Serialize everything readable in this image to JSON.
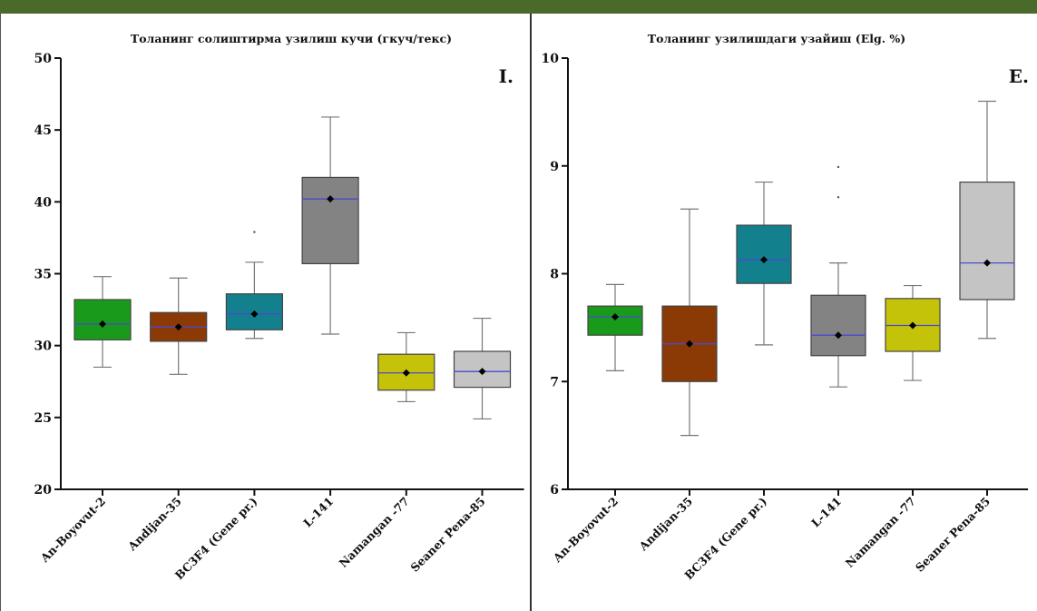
{
  "chart_data": [
    {
      "type": "box",
      "title": "Толанинг солиштирма узилиш кучи (гкуч/текс)",
      "panel_label": "I.",
      "categories": [
        "An-Boyovut-2",
        "Andijan-35",
        "BC3F4 (Gene pr.)",
        "L-141",
        "Namangan -77",
        "Seaner Pena-85"
      ],
      "colors": [
        "#1a9a1a",
        "#8b3a05",
        "#12808d",
        "#838383",
        "#c5c20a",
        "#c4c4c4"
      ],
      "ylim": [
        20,
        50
      ],
      "yticks": [
        20,
        25,
        30,
        35,
        40,
        45,
        50
      ],
      "boxes": [
        {
          "name": "An-Boyovut-2",
          "min": 28.5,
          "q1": 30.4,
          "median": 31.5,
          "q3": 33.2,
          "max": 34.8,
          "mean": 31.5
        },
        {
          "name": "Andijan-35",
          "min": 28.0,
          "q1": 30.3,
          "median": 31.3,
          "q3": 32.3,
          "max": 34.7,
          "mean": 31.3
        },
        {
          "name": "BC3F4 (Gene pr.)",
          "min": 30.5,
          "q1": 31.1,
          "median": 32.2,
          "q3": 33.6,
          "max": 35.8,
          "mean": 32.2,
          "outliers": [
            37.9
          ]
        },
        {
          "name": "L-141",
          "min": 30.8,
          "q1": 35.7,
          "median": 40.2,
          "q3": 41.7,
          "max": 45.9,
          "mean": 40.2
        },
        {
          "name": "Namangan -77",
          "min": 26.1,
          "q1": 26.9,
          "median": 28.1,
          "q3": 29.4,
          "max": 30.9,
          "mean": 28.1
        },
        {
          "name": "Seaner Pena-85",
          "min": 24.9,
          "q1": 27.1,
          "median": 28.2,
          "q3": 29.6,
          "max": 31.9,
          "mean": 28.2
        }
      ]
    },
    {
      "type": "box",
      "title": "Толанинг узилишдаги узайиш (Elg. %)",
      "panel_label": "E.",
      "categories": [
        "An-Boyovut-2",
        "Andijan-35",
        "BC3F4 (Gene pr.)",
        "L-141",
        "Namangan -77",
        "Seaner Pena-85"
      ],
      "colors": [
        "#1a9a1a",
        "#8b3a05",
        "#12808d",
        "#838383",
        "#c5c20a",
        "#c4c4c4"
      ],
      "ylim": [
        6,
        10
      ],
      "yticks": [
        6,
        7,
        8,
        9,
        10
      ],
      "boxes": [
        {
          "name": "An-Boyovut-2",
          "min": 7.1,
          "q1": 7.43,
          "median": 7.6,
          "q3": 7.7,
          "max": 7.9,
          "mean": 7.6
        },
        {
          "name": "Andijan-35",
          "min": 6.5,
          "q1": 7.0,
          "median": 7.35,
          "q3": 7.7,
          "max": 8.6,
          "mean": 7.35
        },
        {
          "name": "BC3F4 (Gene pr.)",
          "min": 7.34,
          "q1": 7.91,
          "median": 8.13,
          "q3": 8.45,
          "max": 8.85,
          "mean": 8.13
        },
        {
          "name": "L-141",
          "min": 6.95,
          "q1": 7.24,
          "median": 7.43,
          "q3": 7.8,
          "max": 8.1,
          "mean": 7.43,
          "outliers": [
            8.99,
            8.71
          ]
        },
        {
          "name": "Namangan -77",
          "min": 7.01,
          "q1": 7.28,
          "median": 7.52,
          "q3": 7.77,
          "max": 7.89,
          "mean": 7.52
        },
        {
          "name": "Seaner Pena-85",
          "min": 7.4,
          "q1": 7.76,
          "median": 8.1,
          "q3": 8.85,
          "max": 9.6,
          "mean": 8.1
        }
      ]
    }
  ]
}
